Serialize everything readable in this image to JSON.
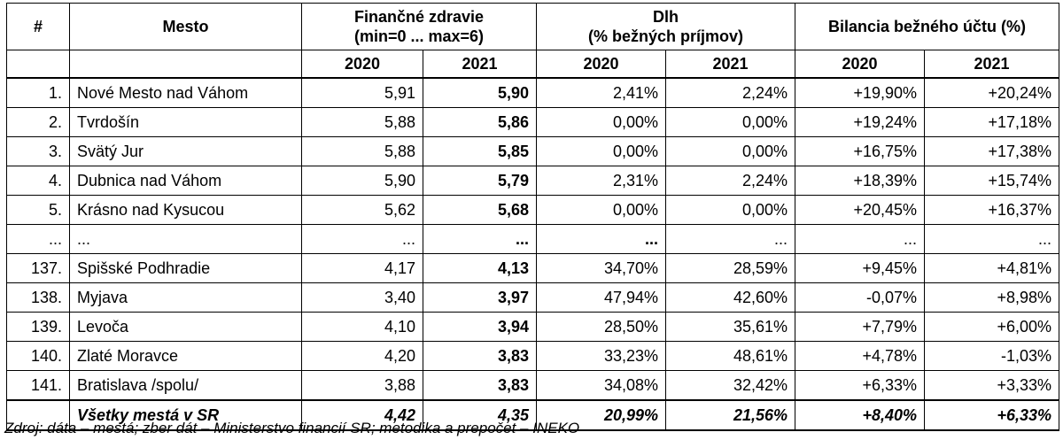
{
  "headers": {
    "rank": "#",
    "city": "Mesto",
    "health_line1": "Finančné zdravie",
    "health_line2": "(min=0 ... max=6)",
    "debt_line1": "Dlh",
    "debt_line2": "(% bežných príjmov)",
    "balance": "Bilancia bežného účtu (%)",
    "years": [
      "2020",
      "2021",
      "2020",
      "2021",
      "2020",
      "2021"
    ]
  },
  "rows": [
    {
      "rank": "1.",
      "city": "Nové Mesto nad Váhom",
      "h2020": "5,91",
      "h2021": "5,90",
      "d2020": "2,41%",
      "d2021": "2,24%",
      "b2020": "+19,90%",
      "b2021": "+20,24%"
    },
    {
      "rank": "2.",
      "city": "Tvrdošín",
      "h2020": "5,88",
      "h2021": "5,86",
      "d2020": "0,00%",
      "d2021": "0,00%",
      "b2020": "+19,24%",
      "b2021": "+17,18%"
    },
    {
      "rank": "3.",
      "city": "Svätý Jur",
      "h2020": "5,88",
      "h2021": "5,85",
      "d2020": "0,00%",
      "d2021": "0,00%",
      "b2020": "+16,75%",
      "b2021": "+17,38%"
    },
    {
      "rank": "4.",
      "city": "Dubnica nad Váhom",
      "h2020": "5,90",
      "h2021": "5,79",
      "d2020": "2,31%",
      "d2021": "2,24%",
      "b2020": "+18,39%",
      "b2021": "+15,74%"
    },
    {
      "rank": "5.",
      "city": "Krásno nad Kysucou",
      "h2020": "5,62",
      "h2021": "5,68",
      "d2020": "0,00%",
      "d2021": "0,00%",
      "b2020": "+20,45%",
      "b2021": "+16,37%"
    },
    {
      "rank": "...",
      "city": "...",
      "h2020": "...",
      "h2021": "...",
      "d2020": "...",
      "d2021": "...",
      "b2020": "...",
      "b2021": "..."
    },
    {
      "rank": "137.",
      "city": "Spišské Podhradie",
      "h2020": "4,17",
      "h2021": "4,13",
      "d2020": "34,70%",
      "d2021": "28,59%",
      "b2020": "+9,45%",
      "b2021": "+4,81%"
    },
    {
      "rank": "138.",
      "city": "Myjava",
      "h2020": "3,40",
      "h2021": "3,97",
      "d2020": "47,94%",
      "d2021": "42,60%",
      "b2020": "-0,07%",
      "b2021": "+8,98%"
    },
    {
      "rank": "139.",
      "city": "Levoča",
      "h2020": "4,10",
      "h2021": "3,94",
      "d2020": "28,50%",
      "d2021": "35,61%",
      "b2020": "+7,79%",
      "b2021": "+6,00%"
    },
    {
      "rank": "140.",
      "city": "Zlaté Moravce",
      "h2020": "4,20",
      "h2021": "3,83",
      "d2020": "33,23%",
      "d2021": "48,61%",
      "b2020": "+4,78%",
      "b2021": "-1,03%"
    },
    {
      "rank": "141.",
      "city": "Bratislava /spolu/",
      "h2020": "3,88",
      "h2021": "3,83",
      "d2020": "34,08%",
      "d2021": "32,42%",
      "b2020": "+6,33%",
      "b2021": "+3,33%"
    }
  ],
  "total": {
    "city": "Všetky mestá v SR",
    "h2020": "4,42",
    "h2021": "4,35",
    "d2020": "20,99%",
    "d2021": "21,56%",
    "b2020": "+8,40%",
    "b2021": "+6,33%"
  },
  "source": "Zdroj: dáta – mestá; zber dát – Ministerstvo financií SR; metodika a prepočet – INEKO"
}
